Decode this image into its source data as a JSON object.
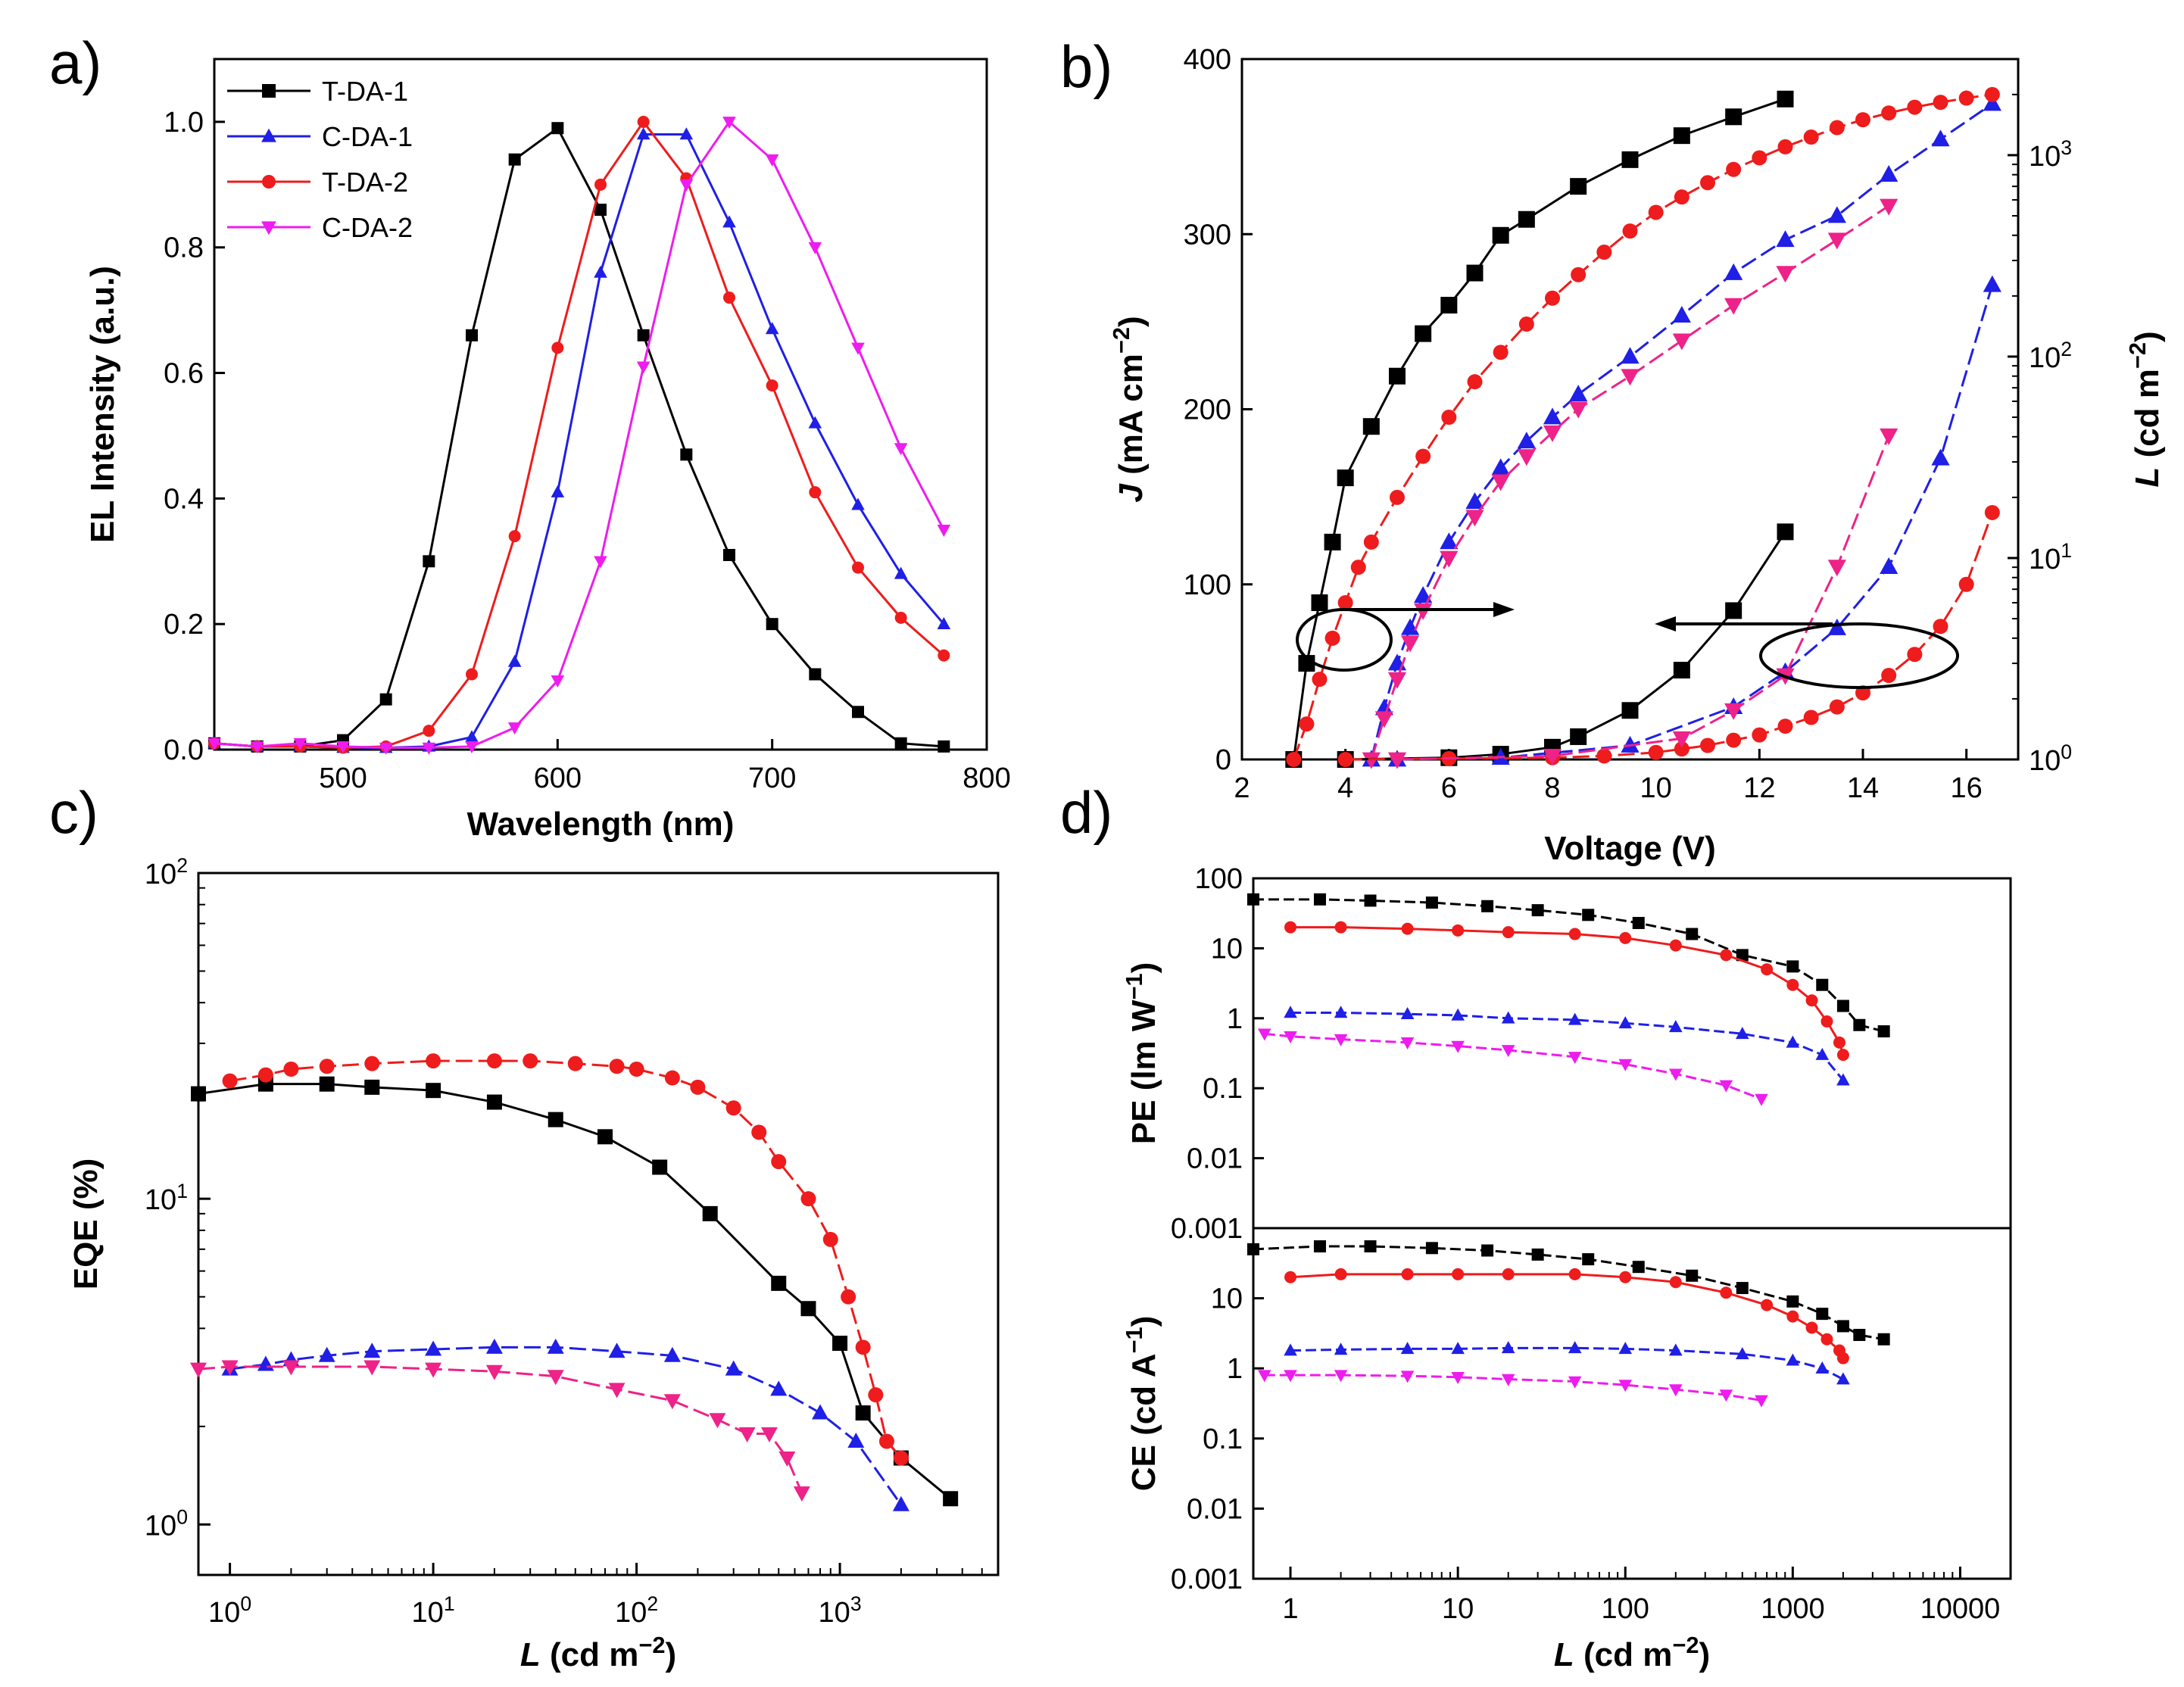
{
  "colors": {
    "T-DA-1": "#000000",
    "C-DA-1": "#1f1fe6",
    "T-DA-2": "#ee1c1c",
    "C-DA-2": "#ee1cee",
    "C-DA-2-c": "#ee2288",
    "axis": "#000000"
  },
  "markers": {
    "T-DA-1": "square",
    "C-DA-1": "triangle-up",
    "T-DA-2": "circle",
    "C-DA-2": "triangle-down"
  },
  "chart_data": [
    {
      "id": "a",
      "panel_label": "a)",
      "type": "line",
      "xlabel": "Wavelength (nm)",
      "ylabel": "EL Intensity (a.u.)",
      "xlim": [
        440,
        800
      ],
      "ylim": [
        0,
        1.1
      ],
      "xticks": [
        "500",
        "600",
        "700",
        "800"
      ],
      "yticks": [
        "0.0",
        "0.2",
        "0.4",
        "0.6",
        "0.8",
        "1.0"
      ],
      "legend": {
        "position": "top-left",
        "entries": [
          "T-DA-1",
          "C-DA-1",
          "T-DA-2",
          "C-DA-2"
        ]
      },
      "series": [
        {
          "name": "T-DA-1",
          "x": [
            440,
            460,
            480,
            500,
            520,
            540,
            560,
            580,
            600,
            620,
            640,
            660,
            680,
            700,
            720,
            740,
            760,
            780
          ],
          "y": [
            0.01,
            0.005,
            0.005,
            0.015,
            0.08,
            0.3,
            0.66,
            0.94,
            0.99,
            0.86,
            0.66,
            0.47,
            0.31,
            0.2,
            0.12,
            0.06,
            0.01,
            0.005
          ]
        },
        {
          "name": "C-DA-1",
          "x": [
            440,
            460,
            480,
            500,
            520,
            540,
            560,
            580,
            600,
            620,
            640,
            660,
            680,
            700,
            720,
            740,
            760,
            780
          ],
          "y": [
            0.01,
            0.005,
            0.005,
            0.003,
            0.003,
            0.005,
            0.02,
            0.14,
            0.41,
            0.76,
            0.98,
            0.98,
            0.84,
            0.67,
            0.52,
            0.39,
            0.28,
            0.2
          ]
        },
        {
          "name": "T-DA-2",
          "x": [
            440,
            460,
            480,
            500,
            520,
            540,
            560,
            580,
            600,
            620,
            640,
            660,
            680,
            700,
            720,
            740,
            760,
            780
          ],
          "y": [
            0.01,
            0.005,
            0.005,
            0.003,
            0.005,
            0.03,
            0.12,
            0.34,
            0.64,
            0.9,
            1.0,
            0.91,
            0.72,
            0.58,
            0.41,
            0.29,
            0.21,
            0.15
          ]
        },
        {
          "name": "C-DA-2",
          "x": [
            440,
            460,
            480,
            500,
            520,
            540,
            560,
            580,
            600,
            620,
            640,
            660,
            680,
            700,
            720,
            740,
            760,
            780
          ],
          "y": [
            0.01,
            0.005,
            0.01,
            0.005,
            0.003,
            0.003,
            0.005,
            0.035,
            0.11,
            0.3,
            0.61,
            0.9,
            1.0,
            0.94,
            0.8,
            0.64,
            0.48,
            0.35
          ]
        }
      ]
    },
    {
      "id": "b",
      "panel_label": "b)",
      "type": "line",
      "xlabel": "Voltage (V)",
      "ylabel_left": "J (mA cm-2)",
      "ylabel_right": "L (cd m-2)",
      "xlim": [
        2,
        17
      ],
      "ylim_left": [
        0,
        400
      ],
      "ylim_right": [
        1,
        3000
      ],
      "right_scale": "log",
      "xticks": [
        "2",
        "4",
        "6",
        "8",
        "10",
        "12",
        "14",
        "16"
      ],
      "yticks_left": [
        "0",
        "100",
        "200",
        "300",
        "400"
      ],
      "yticks_right": [
        "10^0",
        "10^1",
        "10^2",
        "10^3"
      ],
      "annotations": [
        "ellipse with arrow to right axis",
        "ellipse with arrow to left axis"
      ],
      "series_luminance": [
        {
          "name": "T-DA-1",
          "x": [
            3.0,
            3.25,
            3.5,
            3.75,
            4.0,
            4.5,
            5.0,
            5.5,
            6.0,
            6.5,
            7.0,
            7.5,
            8.5,
            9.5,
            10.5,
            11.5,
            12.5
          ],
          "y": [
            1,
            3,
            6,
            12,
            25,
            45,
            80,
            130,
            180,
            260,
            400,
            480,
            700,
            950,
            1250,
            1550,
            1900
          ]
        },
        {
          "name": "C-DA-1",
          "x": [
            4.5,
            4.75,
            5.0,
            5.25,
            5.5,
            6.0,
            6.5,
            7.0,
            7.5,
            8.0,
            8.5,
            9.5,
            10.5,
            11.5,
            12.5,
            13.5,
            14.5,
            15.5,
            16.5
          ],
          "y": [
            1,
            1.8,
            3,
            4.5,
            6.5,
            12,
            19,
            28,
            38,
            50,
            65,
            100,
            160,
            260,
            380,
            500,
            800,
            1200,
            1800
          ]
        },
        {
          "name": "T-DA-2",
          "x": [
            3.0,
            3.25,
            3.5,
            3.75,
            4.0,
            4.25,
            4.5,
            5.0,
            5.5,
            6.0,
            6.5,
            7.0,
            7.5,
            8.0,
            8.5,
            9.0,
            9.5,
            10.0,
            10.5,
            11.0,
            11.5,
            12.0,
            12.5,
            13.0,
            13.5,
            14.0,
            14.5,
            15.0,
            15.5,
            16.0,
            16.5
          ],
          "y": [
            1,
            1.5,
            2.5,
            4,
            6,
            9,
            12,
            20,
            32,
            50,
            75,
            105,
            145,
            195,
            255,
            330,
            420,
            520,
            620,
            730,
            850,
            970,
            1100,
            1230,
            1370,
            1500,
            1620,
            1730,
            1830,
            1920,
            2000
          ]
        },
        {
          "name": "C-DA-2",
          "x": [
            4.5,
            4.75,
            5.0,
            5.25,
            5.5,
            6.0,
            6.5,
            7.0,
            7.5,
            8.0,
            8.5,
            9.5,
            10.5,
            11.5,
            12.5,
            13.5,
            14.5
          ],
          "y": [
            1,
            1.6,
            2.5,
            3.8,
            5.5,
            10,
            16,
            24,
            32,
            42,
            55,
            80,
            120,
            180,
            260,
            380,
            560
          ]
        }
      ],
      "series_current": [
        {
          "name": "T-DA-1",
          "x": [
            4.0,
            6.0,
            7.0,
            8.0,
            8.5,
            9.5,
            10.5,
            11.5,
            12.5
          ],
          "y": [
            0,
            1,
            3,
            7,
            13,
            28,
            51,
            85,
            130
          ]
        },
        {
          "name": "C-DA-1",
          "x": [
            5.0,
            7.0,
            9.5,
            11.5,
            12.5,
            13.5,
            14.5,
            15.5,
            16.5
          ],
          "y": [
            0,
            1,
            8,
            30,
            50,
            75,
            110,
            172,
            271
          ]
        },
        {
          "name": "T-DA-2",
          "x": [
            4.0,
            6.0,
            8.0,
            9.0,
            10.0,
            10.5,
            11.0,
            11.5,
            12.0,
            12.5,
            13.0,
            13.5,
            14.0,
            14.5,
            15.0,
            15.5,
            16.0,
            16.5
          ],
          "y": [
            0,
            0.5,
            1,
            2,
            4,
            6,
            8,
            11,
            14,
            19,
            24,
            30,
            38,
            48,
            60,
            76,
            100,
            141
          ]
        },
        {
          "name": "C-DA-2",
          "x": [
            5.0,
            8.0,
            10.5,
            11.5,
            12.5,
            13.5,
            14.5
          ],
          "y": [
            0,
            2,
            12,
            28,
            48,
            110,
            185
          ]
        }
      ]
    },
    {
      "id": "c",
      "panel_label": "c)",
      "type": "line",
      "xlabel": "L (cd m-2)",
      "ylabel": "EQE (%)",
      "x_scale": "log",
      "y_scale": "log",
      "xlim": [
        0.7,
        6000
      ],
      "ylim": [
        0.7,
        100
      ],
      "xticks": [
        "10^0",
        "10^1",
        "10^2",
        "10^3"
      ],
      "yticks": [
        "10^0",
        "10^1",
        "10^2"
      ],
      "series": [
        {
          "name": "T-DA-1",
          "x": [
            0.7,
            1.5,
            3,
            5,
            10,
            20,
            40,
            70,
            130,
            230,
            500,
            700,
            1000,
            1300,
            2000,
            3500
          ],
          "y": [
            21,
            22.5,
            22.5,
            22,
            21.5,
            19.8,
            17.5,
            15.5,
            12.5,
            9,
            5.5,
            4.6,
            3.6,
            2.2,
            1.6,
            1.2
          ]
        },
        {
          "name": "T-DA-2",
          "x": [
            1,
            1.5,
            2,
            3,
            5,
            10,
            20,
            30,
            50,
            80,
            100,
            150,
            200,
            300,
            400,
            500,
            700,
            900,
            1100,
            1300,
            1500,
            1700,
            2000
          ],
          "y": [
            23,
            24,
            25,
            25.5,
            26,
            26.5,
            26.5,
            26.5,
            26,
            25.5,
            25,
            23.5,
            22,
            19,
            16,
            13,
            10,
            7.5,
            5,
            3.5,
            2.5,
            1.8,
            1.6
          ]
        },
        {
          "name": "C-DA-1",
          "x": [
            1,
            1.5,
            2,
            3,
            5,
            10,
            20,
            40,
            80,
            150,
            300,
            500,
            800,
            1200,
            2000
          ],
          "y": [
            3,
            3.1,
            3.2,
            3.3,
            3.4,
            3.45,
            3.5,
            3.5,
            3.4,
            3.3,
            3.0,
            2.6,
            2.2,
            1.8,
            1.15
          ]
        },
        {
          "name": "C-DA-2",
          "x": [
            0.7,
            1,
            2,
            5,
            10,
            20,
            40,
            80,
            150,
            250,
            350,
            450,
            550,
            650
          ],
          "y": [
            3,
            3.05,
            3.05,
            3.05,
            3.0,
            2.95,
            2.85,
            2.6,
            2.4,
            2.1,
            1.9,
            1.9,
            1.6,
            1.25
          ]
        }
      ]
    },
    {
      "id": "d",
      "panel_label": "d)",
      "type": "line",
      "xlabel": "L (cd m-2)",
      "x_scale": "log",
      "xlim": [
        0.6,
        20000
      ],
      "xticks": [
        "1",
        "10",
        "100",
        "1000",
        "10000"
      ],
      "subplots": [
        {
          "id": "d-top",
          "ylabel": "PE (lm W-1)",
          "y_scale": "log",
          "ylim": [
            0.001,
            100
          ],
          "yticks": [
            "0.001",
            "0.01",
            "0.1",
            "1",
            "10",
            "100"
          ],
          "series": [
            {
              "name": "T-DA-1",
              "x": [
                0.6,
                1.5,
                3,
                7,
                15,
                30,
                60,
                120,
                250,
                500,
                1000,
                1500,
                2000,
                2500,
                3500
              ],
              "y": [
                50,
                50,
                48,
                45,
                40,
                35,
                30,
                23,
                16,
                8,
                5.5,
                3,
                1.5,
                0.8,
                0.65
              ]
            },
            {
              "name": "T-DA-2",
              "x": [
                1,
                2,
                5,
                10,
                20,
                50,
                100,
                200,
                400,
                700,
                1000,
                1300,
                1600,
                1900,
                2000
              ],
              "y": [
                20,
                20,
                19,
                18,
                17,
                16,
                14,
                11,
                8,
                5,
                3,
                1.8,
                0.9,
                0.45,
                0.3
              ]
            },
            {
              "name": "C-DA-1",
              "x": [
                1,
                2,
                5,
                10,
                20,
                50,
                100,
                200,
                500,
                1000,
                1500,
                2000
              ],
              "y": [
                1.2,
                1.2,
                1.15,
                1.1,
                1.0,
                0.95,
                0.85,
                0.75,
                0.6,
                0.45,
                0.3,
                0.13
              ]
            },
            {
              "name": "C-DA-2",
              "x": [
                0.7,
                1,
                2,
                5,
                10,
                20,
                50,
                100,
                200,
                400,
                650
              ],
              "y": [
                0.6,
                0.55,
                0.5,
                0.45,
                0.4,
                0.35,
                0.28,
                0.22,
                0.16,
                0.11,
                0.07
              ]
            }
          ]
        },
        {
          "id": "d-bottom",
          "ylabel": "CE (cd A-1)",
          "y_scale": "log",
          "ylim": [
            0.001,
            100
          ],
          "yticks": [
            "0.001",
            "0.01",
            "0.1",
            "1",
            "10",
            ""
          ],
          "series": [
            {
              "name": "T-DA-1",
              "x": [
                0.6,
                1.5,
                3,
                7,
                15,
                30,
                60,
                120,
                250,
                500,
                1000,
                1500,
                2000,
                2500,
                3500
              ],
              "y": [
                50,
                55,
                55,
                52,
                48,
                42,
                36,
                28,
                21,
                14,
                9,
                6,
                4,
                3,
                2.6
              ]
            },
            {
              "name": "T-DA-2",
              "x": [
                1,
                2,
                5,
                10,
                20,
                50,
                100,
                200,
                400,
                700,
                1000,
                1300,
                1600,
                1900,
                2000
              ],
              "y": [
                20,
                22,
                22,
                22,
                22,
                22,
                20,
                17,
                12,
                8,
                5.5,
                3.8,
                2.6,
                1.8,
                1.4
              ]
            },
            {
              "name": "C-DA-1",
              "x": [
                1,
                2,
                5,
                10,
                20,
                50,
                100,
                200,
                500,
                1000,
                1500,
                2000
              ],
              "y": [
                1.8,
                1.85,
                1.9,
                1.9,
                1.95,
                1.95,
                1.9,
                1.8,
                1.6,
                1.3,
                1.0,
                0.7
              ]
            },
            {
              "name": "C-DA-2",
              "x": [
                0.7,
                1,
                2,
                5,
                10,
                20,
                50,
                100,
                200,
                400,
                650
              ],
              "y": [
                0.8,
                0.8,
                0.8,
                0.78,
                0.75,
                0.7,
                0.65,
                0.58,
                0.5,
                0.42,
                0.35
              ]
            }
          ]
        }
      ]
    }
  ]
}
